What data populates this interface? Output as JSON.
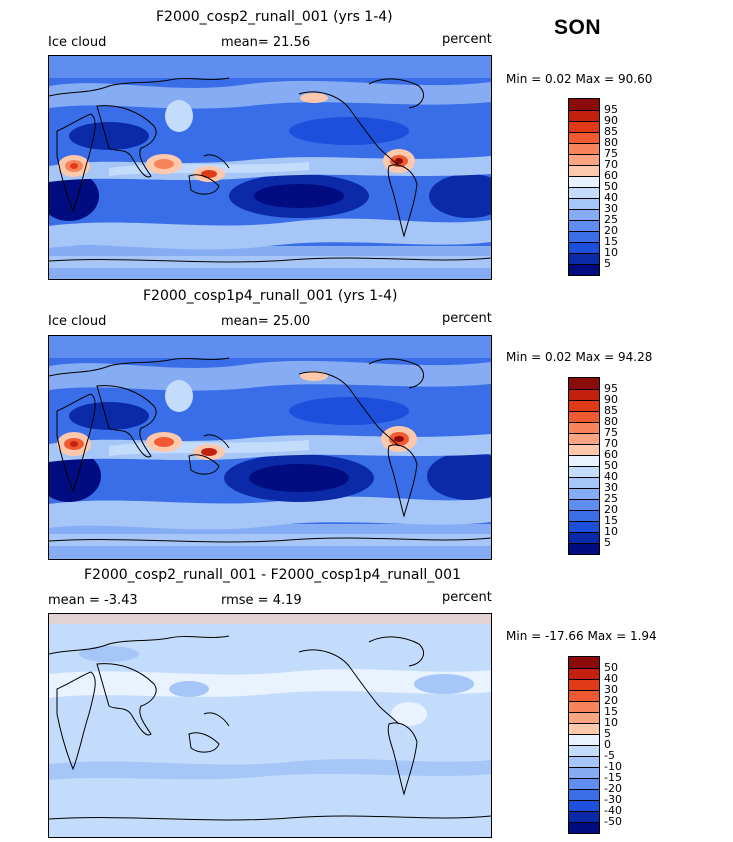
{
  "season": "SON",
  "panels": [
    {
      "title": "F2000_cosp2_runall_001 (yrs 1-4)",
      "left_label": "Ice cloud",
      "mid_label": "mean=  21.56",
      "units": "percent",
      "minmax": "Min =    0.02 Max =   90.60",
      "levels": [
        "95",
        "90",
        "85",
        "80",
        "75",
        "70",
        "60",
        "50",
        "40",
        "30",
        "25",
        "20",
        "15",
        "10",
        "5"
      ],
      "colors": [
        "#8b0a0a",
        "#c4200e",
        "#e13a18",
        "#f05a32",
        "#f7845a",
        "#fba482",
        "#fdc8ac",
        "#e9f2ff",
        "#c4dcfc",
        "#a6c6f8",
        "#86adf3",
        "#5f8ef0",
        "#3a6ee8",
        "#1b4fdc",
        "#0a2aa8",
        "#000c80"
      ],
      "map": "Ice cloud field, mean 21.56 percent"
    },
    {
      "title": "F2000_cosp1p4_runall_001 (yrs 1-4)",
      "left_label": "Ice cloud",
      "mid_label": "mean=  25.00",
      "units": "percent",
      "minmax": "Min =    0.02 Max =   94.28",
      "levels": [
        "95",
        "90",
        "85",
        "80",
        "75",
        "70",
        "60",
        "50",
        "40",
        "30",
        "25",
        "20",
        "15",
        "10",
        "5"
      ],
      "colors": [
        "#8b0a0a",
        "#c4200e",
        "#e13a18",
        "#f05a32",
        "#f7845a",
        "#fba482",
        "#fdc8ac",
        "#e9f2ff",
        "#c4dcfc",
        "#a6c6f8",
        "#86adf3",
        "#5f8ef0",
        "#3a6ee8",
        "#1b4fdc",
        "#0a2aa8",
        "#000c80"
      ],
      "map": "Ice cloud field, mean 25.00 percent"
    },
    {
      "title": "F2000_cosp2_runall_001 - F2000_cosp1p4_runall_001",
      "left_label": "mean =   -3.43",
      "mid_label": "rmse =    4.19",
      "units": "percent",
      "minmax": "Min = -17.66 Max =    1.94",
      "levels": [
        "50",
        "40",
        "30",
        "20",
        "15",
        "10",
        "5",
        "0",
        "-5",
        "-10",
        "-15",
        "-20",
        "-30",
        "-40",
        "-50"
      ],
      "colors": [
        "#8b0a0a",
        "#c4200e",
        "#e13a18",
        "#f05a32",
        "#f7845a",
        "#fba482",
        "#fdc8ac",
        "#e9f2ff",
        "#c4dcfc",
        "#a6c6f8",
        "#86adf3",
        "#5f8ef0",
        "#3a6ee8",
        "#1b4fdc",
        "#0a2aa8",
        "#000c80"
      ],
      "map": "Difference field, mostly slightly negative"
    }
  ]
}
